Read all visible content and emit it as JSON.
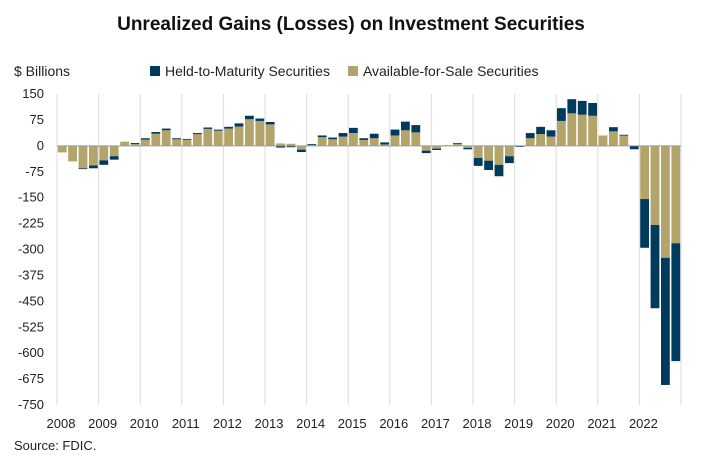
{
  "chart_data": {
    "type": "bar",
    "stacked": true,
    "title": "Unrealized Gains (Losses) on Investment Securities",
    "ylabel": "$ Billions",
    "ylim": [
      -750,
      150
    ],
    "yticks": [
      150,
      75,
      0,
      -75,
      -150,
      -225,
      -300,
      -375,
      -450,
      -525,
      -600,
      -675,
      -750
    ],
    "years": [
      "2008",
      "2009",
      "2010",
      "2011",
      "2012",
      "2013",
      "2014",
      "2015",
      "2016",
      "2017",
      "2018",
      "2019",
      "2020",
      "2021",
      "2022"
    ],
    "grid": "vertical",
    "legend_position": "top",
    "series": [
      {
        "name": "Available-for-Sale Securities",
        "color": "#b3a46c",
        "values": [
          -19,
          -45,
          -65,
          -57,
          -42,
          -30,
          12,
          5,
          18,
          35,
          45,
          19,
          18,
          34,
          49,
          44,
          50,
          56,
          77,
          72,
          62,
          7,
          6,
          -11,
          4,
          25,
          19,
          27,
          37,
          17,
          22,
          4,
          30,
          45,
          39,
          -14,
          -8,
          2,
          6,
          -6,
          -35,
          -43,
          -55,
          -30,
          0,
          22,
          34,
          27,
          72,
          94,
          90,
          87,
          30,
          42,
          30,
          0,
          -154,
          -229,
          -324,
          -282
        ]
      },
      {
        "name": "Held-to-Maturity Securities",
        "color": "#003a5c",
        "values": [
          0,
          0,
          -2,
          -8,
          -13,
          -10,
          0,
          3,
          4,
          5,
          5,
          3,
          2,
          3,
          4,
          3,
          5,
          9,
          10,
          7,
          7,
          -5,
          -4,
          -7,
          1,
          5,
          5,
          10,
          15,
          5,
          13,
          6,
          17,
          25,
          21,
          -7,
          -4,
          0,
          2,
          -4,
          -23,
          -27,
          -33,
          -20,
          -3,
          15,
          21,
          18,
          37,
          41,
          40,
          37,
          0,
          12,
          2,
          -10,
          -141,
          -241,
          -368,
          -341
        ]
      }
    ]
  },
  "source": "Source: FDIC."
}
